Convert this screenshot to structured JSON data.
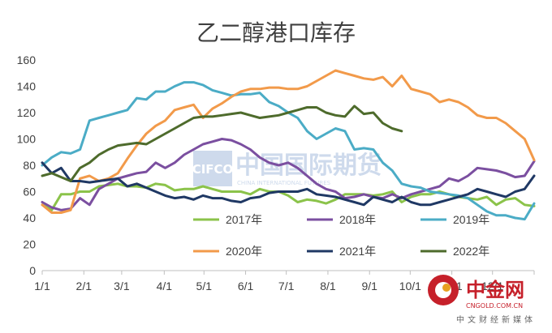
{
  "chart_data": {
    "type": "line",
    "title": "乙二醇港口库存",
    "xlabel": "",
    "ylabel": "",
    "ylim": [
      0,
      160
    ],
    "yticks": [
      0,
      20,
      40,
      60,
      80,
      100,
      120,
      140,
      160
    ],
    "xlim": [
      1,
      53
    ],
    "xtick_labels": [
      "1/1",
      "2/1",
      "3/1",
      "4/1",
      "5/1",
      "6/1",
      "7/1",
      "8/1",
      "9/1",
      "10/1",
      "11/1",
      "12/1"
    ],
    "xtick_positions": [
      1,
      5.4,
      9.4,
      13.9,
      18.1,
      22.5,
      26.8,
      31.2,
      35.6,
      39.9,
      44.3,
      48.6
    ],
    "grid": false,
    "legend_position": "bottom",
    "series": [
      {
        "name": "2017年",
        "color": "#8bc34a",
        "values": [
          50,
          46,
          58,
          58,
          60,
          60,
          64,
          65,
          66,
          64,
          64,
          63,
          66,
          65,
          61,
          62,
          62,
          64,
          62,
          60,
          60,
          60,
          58,
          62,
          60,
          60,
          57,
          52,
          54,
          53,
          51,
          54,
          58,
          58,
          58,
          57,
          58,
          60,
          52,
          56,
          58,
          58,
          60,
          58,
          56,
          55,
          54,
          56,
          50,
          54,
          55,
          50,
          49
        ]
      },
      {
        "name": "2018年",
        "color": "#7b4fa0",
        "values": [
          52,
          48,
          46,
          47,
          55,
          50,
          62,
          66,
          70,
          72,
          74,
          75,
          82,
          78,
          82,
          88,
          92,
          96,
          98,
          100,
          99,
          96,
          92,
          86,
          82,
          80,
          82,
          78,
          72,
          66,
          62,
          60,
          55,
          56,
          58,
          56,
          55,
          58,
          55,
          58,
          60,
          62,
          64,
          70,
          68,
          72,
          78,
          77,
          76,
          74,
          71,
          72,
          83
        ]
      },
      {
        "name": "2019年",
        "color": "#4bacc6",
        "values": [
          80,
          86,
          90,
          89,
          92,
          114,
          116,
          118,
          120,
          122,
          131,
          130,
          136,
          136,
          140,
          143,
          143,
          141,
          137,
          135,
          133,
          134,
          134,
          135,
          128,
          125,
          120,
          116,
          106,
          100,
          104,
          108,
          106,
          92,
          93,
          92,
          82,
          76,
          66,
          64,
          63,
          60,
          59,
          58,
          57,
          55,
          50,
          45,
          42,
          42,
          40,
          39,
          51
        ]
      },
      {
        "name": "2020年",
        "color": "#f29a4a",
        "values": [
          50,
          44,
          44,
          46,
          70,
          72,
          68,
          70,
          74,
          85,
          95,
          104,
          110,
          114,
          122,
          124,
          126,
          116,
          123,
          127,
          132,
          136,
          138,
          138,
          139,
          139,
          138,
          138,
          140,
          144,
          148,
          152,
          150,
          148,
          146,
          145,
          147,
          140,
          148,
          138,
          136,
          134,
          128,
          130,
          128,
          124,
          118,
          116,
          116,
          112,
          106,
          100,
          84
        ]
      },
      {
        "name": "2021年",
        "color": "#1f3864",
        "values": [
          82,
          74,
          78,
          68,
          68,
          67,
          68,
          69,
          70,
          64,
          66,
          63,
          60,
          57,
          55,
          56,
          54,
          57,
          55,
          55,
          53,
          52,
          55,
          56,
          59,
          60,
          60,
          60,
          62,
          58,
          57,
          56,
          54,
          52,
          50,
          56,
          54,
          52,
          56,
          52,
          50,
          50,
          52,
          54,
          56,
          58,
          62,
          60,
          58,
          56,
          60,
          62,
          72
        ]
      },
      {
        "name": "2022年",
        "color": "#4e6b2c",
        "values": [
          72,
          74,
          71,
          68,
          78,
          82,
          88,
          92,
          95,
          96,
          97,
          96,
          100,
          104,
          108,
          112,
          116,
          117,
          117,
          118,
          119,
          120,
          118,
          116,
          117,
          118,
          120,
          122,
          124,
          124,
          120,
          118,
          117,
          125,
          119,
          120,
          112,
          108,
          106,
          null,
          null,
          null,
          null,
          null,
          null,
          null,
          null,
          null,
          null,
          null,
          null,
          null,
          null
        ]
      }
    ]
  },
  "watermark": {
    "main": "中国国际期货",
    "en": "CIFCO",
    "sub": "CHINA INTERNATIONAL FUTURES"
  },
  "logo": {
    "main": "中金网",
    "url": "CNGOLD.COM.CN",
    "sub": "中文财经新媒体"
  }
}
